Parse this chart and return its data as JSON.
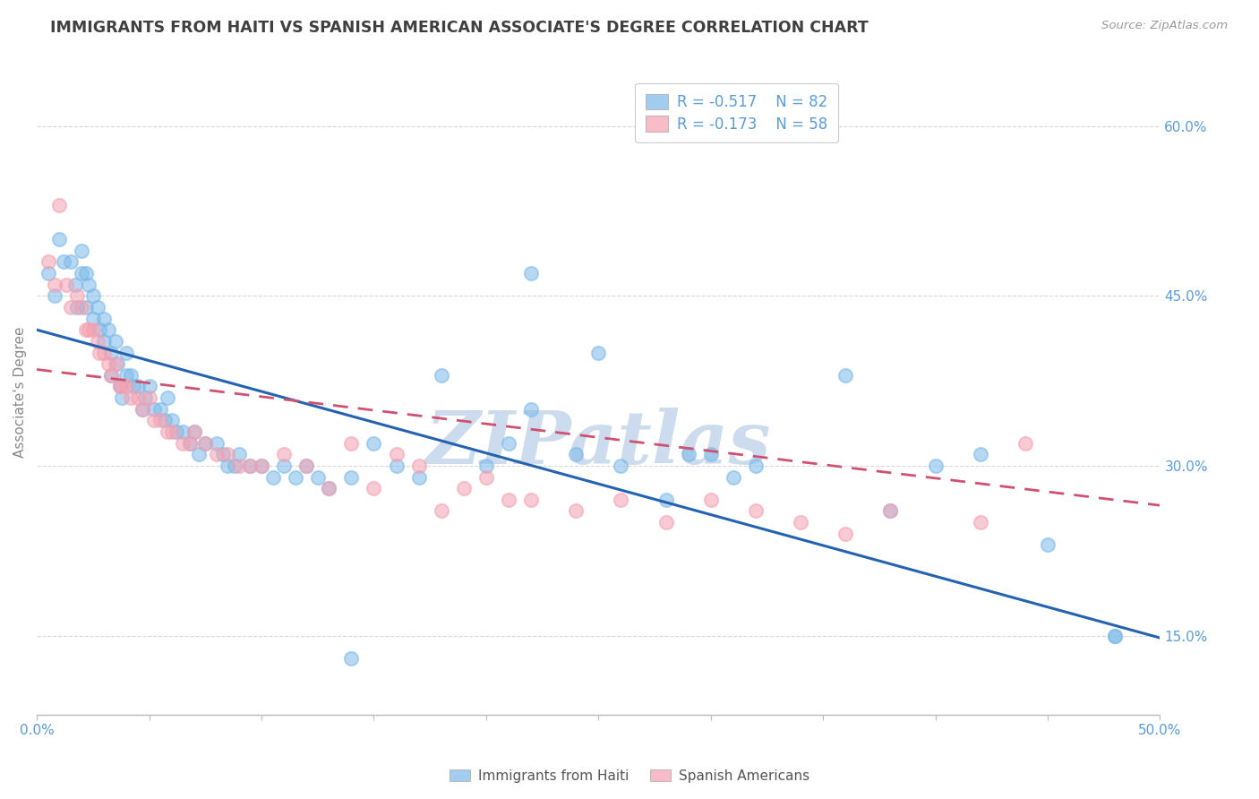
{
  "title": "IMMIGRANTS FROM HAITI VS SPANISH AMERICAN ASSOCIATE'S DEGREE CORRELATION CHART",
  "source_text": "Source: ZipAtlas.com",
  "ylabel": "Associate's Degree",
  "xlim": [
    0.0,
    0.5
  ],
  "ylim": [
    0.08,
    0.65
  ],
  "xticks": [
    0.0,
    0.05,
    0.1,
    0.15,
    0.2,
    0.25,
    0.3,
    0.35,
    0.4,
    0.45,
    0.5
  ],
  "yticks": [
    0.15,
    0.3,
    0.45,
    0.6
  ],
  "yticklabels": [
    "15.0%",
    "30.0%",
    "45.0%",
    "60.0%"
  ],
  "legend_r1": "R = -0.517",
  "legend_n1": "N = 82",
  "legend_r2": "R = -0.173",
  "legend_n2": "N = 58",
  "series1_color": "#7cb9e8",
  "series2_color": "#f4a0b0",
  "series1_label": "Immigrants from Haiti",
  "series2_label": "Spanish Americans",
  "watermark": "ZIPatlas",
  "scatter1_x": [
    0.005,
    0.008,
    0.01,
    0.012,
    0.015,
    0.017,
    0.018,
    0.02,
    0.02,
    0.022,
    0.022,
    0.023,
    0.025,
    0.025,
    0.027,
    0.028,
    0.03,
    0.03,
    0.032,
    0.033,
    0.033,
    0.035,
    0.036,
    0.037,
    0.038,
    0.04,
    0.04,
    0.042,
    0.043,
    0.045,
    0.047,
    0.048,
    0.05,
    0.052,
    0.055,
    0.057,
    0.058,
    0.06,
    0.062,
    0.065,
    0.068,
    0.07,
    0.072,
    0.075,
    0.08,
    0.083,
    0.085,
    0.088,
    0.09,
    0.095,
    0.1,
    0.105,
    0.11,
    0.115,
    0.12,
    0.125,
    0.13,
    0.14,
    0.15,
    0.16,
    0.17,
    0.18,
    0.2,
    0.21,
    0.22,
    0.24,
    0.25,
    0.26,
    0.28,
    0.3,
    0.32,
    0.36,
    0.38,
    0.4,
    0.42,
    0.45,
    0.48,
    0.14,
    0.22,
    0.29,
    0.31,
    0.48
  ],
  "scatter1_y": [
    0.47,
    0.45,
    0.5,
    0.48,
    0.48,
    0.46,
    0.44,
    0.49,
    0.47,
    0.47,
    0.44,
    0.46,
    0.45,
    0.43,
    0.44,
    0.42,
    0.43,
    0.41,
    0.42,
    0.4,
    0.38,
    0.41,
    0.39,
    0.37,
    0.36,
    0.4,
    0.38,
    0.38,
    0.37,
    0.37,
    0.35,
    0.36,
    0.37,
    0.35,
    0.35,
    0.34,
    0.36,
    0.34,
    0.33,
    0.33,
    0.32,
    0.33,
    0.31,
    0.32,
    0.32,
    0.31,
    0.3,
    0.3,
    0.31,
    0.3,
    0.3,
    0.29,
    0.3,
    0.29,
    0.3,
    0.29,
    0.28,
    0.29,
    0.32,
    0.3,
    0.29,
    0.38,
    0.3,
    0.32,
    0.35,
    0.31,
    0.4,
    0.3,
    0.27,
    0.31,
    0.3,
    0.38,
    0.26,
    0.3,
    0.31,
    0.23,
    0.15,
    0.13,
    0.47,
    0.31,
    0.29,
    0.15
  ],
  "scatter2_x": [
    0.005,
    0.008,
    0.01,
    0.013,
    0.015,
    0.018,
    0.02,
    0.022,
    0.023,
    0.025,
    0.027,
    0.028,
    0.03,
    0.032,
    0.033,
    0.035,
    0.037,
    0.038,
    0.04,
    0.042,
    0.045,
    0.047,
    0.05,
    0.052,
    0.055,
    0.058,
    0.06,
    0.065,
    0.068,
    0.07,
    0.075,
    0.08,
    0.085,
    0.09,
    0.095,
    0.1,
    0.11,
    0.12,
    0.13,
    0.14,
    0.15,
    0.16,
    0.17,
    0.18,
    0.19,
    0.2,
    0.21,
    0.22,
    0.24,
    0.26,
    0.28,
    0.3,
    0.32,
    0.34,
    0.36,
    0.38,
    0.42,
    0.44
  ],
  "scatter2_y": [
    0.48,
    0.46,
    0.53,
    0.46,
    0.44,
    0.45,
    0.44,
    0.42,
    0.42,
    0.42,
    0.41,
    0.4,
    0.4,
    0.39,
    0.38,
    0.39,
    0.37,
    0.37,
    0.37,
    0.36,
    0.36,
    0.35,
    0.36,
    0.34,
    0.34,
    0.33,
    0.33,
    0.32,
    0.32,
    0.33,
    0.32,
    0.31,
    0.31,
    0.3,
    0.3,
    0.3,
    0.31,
    0.3,
    0.28,
    0.32,
    0.28,
    0.31,
    0.3,
    0.26,
    0.28,
    0.29,
    0.27,
    0.27,
    0.26,
    0.27,
    0.25,
    0.27,
    0.26,
    0.25,
    0.24,
    0.26,
    0.25,
    0.32
  ],
  "trend1_x": [
    0.0,
    0.5
  ],
  "trend1_y": [
    0.42,
    0.148
  ],
  "trend2_x": [
    0.0,
    0.5
  ],
  "trend2_y": [
    0.385,
    0.265
  ],
  "bg_color": "#ffffff",
  "grid_color": "#d8d8d8",
  "title_color": "#404040",
  "axis_label_color": "#5b9bd5",
  "ylabel_color": "#888888",
  "trend1_color": "#2563b0",
  "trend2_color": "#d05070",
  "watermark_color": "#ccdcee"
}
